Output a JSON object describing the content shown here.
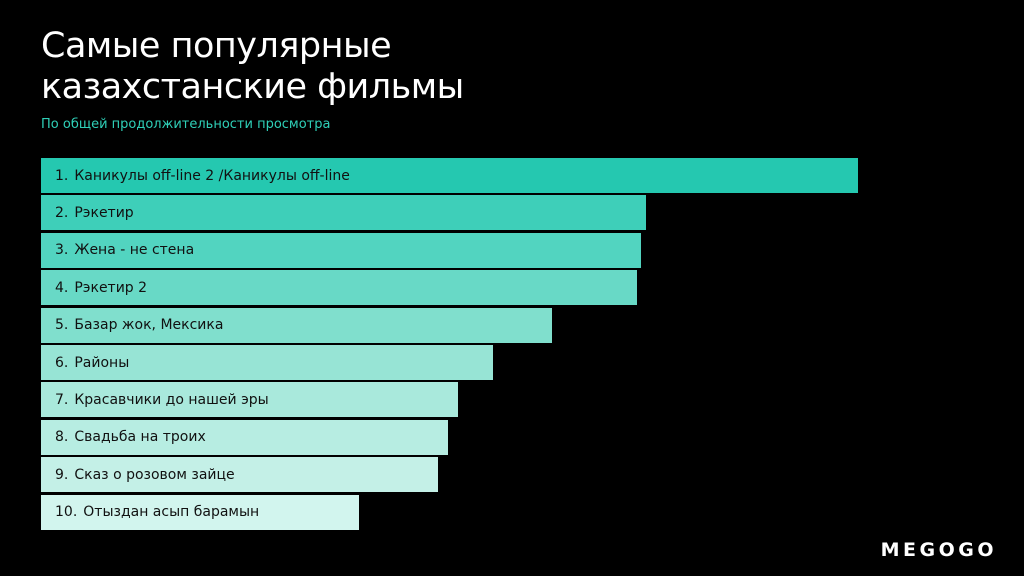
{
  "header": {
    "title_line1": "Самые популярные",
    "title_line2": "казахстанские фильмы",
    "subtitle": "По общей продолжительности просмотра"
  },
  "colors": {
    "background": "#000000",
    "accent": "#2fd0b8",
    "bar_darkest": "#25c8b0",
    "bar_lightest": "#d2f5ee"
  },
  "chart_data": {
    "type": "bar",
    "orientation": "horizontal",
    "title": "Самые популярные казахстанские фильмы",
    "subtitle": "По общей продолжительности просмотра",
    "xlabel": "",
    "ylabel": "",
    "grid": false,
    "legend": "none",
    "xlim": [
      0,
      100
    ],
    "categories": [
      "Каникулы off-line 2 /Каникулы off-line",
      "Рэкетир",
      "Жена - не стена",
      "Рэкетир 2",
      "Базар жок, Мексика",
      "Районы",
      "Красавчики до нашей эры",
      "Свадьба на троих",
      "Сказ о розовом зайце",
      "Отыздан асып барамын"
    ],
    "ranks": [
      "1.",
      "2.",
      "3.",
      "4.",
      "5.",
      "6.",
      "7.",
      "8.",
      "9.",
      "10."
    ],
    "values": [
      100,
      74.1,
      73.5,
      73.0,
      62.5,
      55.3,
      51.0,
      49.8,
      48.6,
      38.9
    ],
    "bar_colors": [
      "#25c8b0",
      "#3ecfb9",
      "#52d4c0",
      "#68d9c6",
      "#80dfcd",
      "#97e4d5",
      "#a9e9dc",
      "#b7ede2",
      "#c4f0e7",
      "#d2f5ee"
    ]
  },
  "brand": {
    "logo": "MEGOGO"
  }
}
